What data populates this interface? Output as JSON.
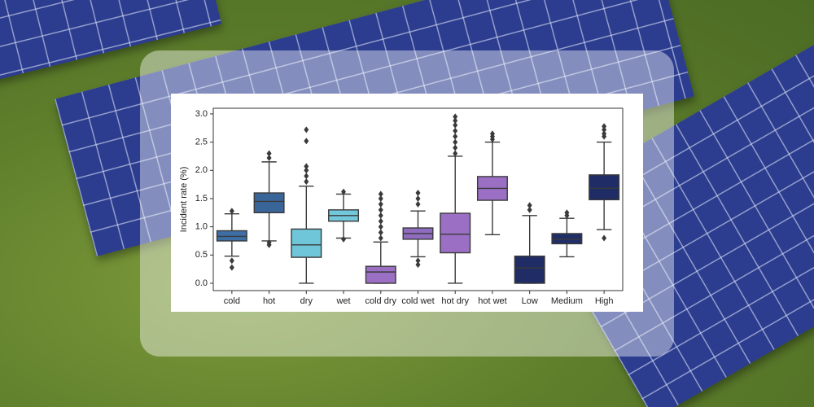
{
  "chart_data": {
    "type": "box",
    "y_label": "Incident rate (%)",
    "ylim": [
      -0.13,
      3.1
    ],
    "yticks": [
      {
        "value": 0,
        "label": "0.0"
      },
      0.5,
      {
        "value": 1,
        "label": "1.0"
      },
      1.5,
      {
        "value": 2,
        "label": "2.0"
      },
      2.5,
      {
        "value": 3,
        "label": "3.0"
      }
    ],
    "categories": [
      "cold",
      "hot",
      "dry",
      "wet",
      "cold dry",
      "cold wet",
      "hot dry",
      "hot wet",
      "Low",
      "Medium",
      "High"
    ],
    "boxes": [
      {
        "low": 0.48,
        "q1": 0.75,
        "median": 0.83,
        "q3": 0.93,
        "high": 1.23,
        "outliers": [
          0.28,
          0.4,
          1.28
        ],
        "color": "#3d6fa6"
      },
      {
        "low": 0.75,
        "q1": 1.25,
        "median": 1.45,
        "q3": 1.6,
        "high": 2.15,
        "outliers": [
          0.68,
          0.72,
          2.22,
          2.3
        ],
        "color": "#3a6599"
      },
      {
        "low": 0,
        "q1": 0.46,
        "median": 0.68,
        "q3": 0.96,
        "high": 1.72,
        "outliers": [
          1.8,
          1.9,
          2.0,
          2.07,
          2.52,
          2.72
        ],
        "color": "#6ec6d8"
      },
      {
        "low": 0.8,
        "q1": 1.1,
        "median": 1.2,
        "q3": 1.3,
        "high": 1.58,
        "outliers": [
          0.78,
          1.62
        ],
        "color": "#72c7da"
      },
      {
        "low": 0,
        "q1": 0,
        "median": 0.2,
        "q3": 0.3,
        "high": 0.73,
        "outliers": [
          0.8,
          0.9,
          1.0,
          1.1,
          1.2,
          1.3,
          1.4,
          1.5,
          1.58
        ],
        "color": "#9a6fc4"
      },
      {
        "low": 0.47,
        "q1": 0.78,
        "median": 0.88,
        "q3": 0.98,
        "high": 1.28,
        "outliers": [
          0.33,
          0.4,
          1.4,
          1.5,
          1.6
        ],
        "color": "#8f6cbf"
      },
      {
        "low": 0,
        "q1": 0.54,
        "median": 0.87,
        "q3": 1.24,
        "high": 2.25,
        "outliers": [
          2.3,
          2.4,
          2.5,
          2.6,
          2.7,
          2.8,
          2.88,
          2.95
        ],
        "color": "#9a6fc4"
      },
      {
        "low": 0.86,
        "q1": 1.47,
        "median": 1.68,
        "q3": 1.89,
        "high": 2.5,
        "outliers": [
          2.55,
          2.6,
          2.65
        ],
        "color": "#9a6fc4"
      },
      {
        "low": 0,
        "q1": 0,
        "median": 0.27,
        "q3": 0.48,
        "high": 1.2,
        "outliers": [
          1.3,
          1.38
        ],
        "color": "#1f2c66"
      },
      {
        "low": 0.47,
        "q1": 0.7,
        "median": 0.78,
        "q3": 0.88,
        "high": 1.15,
        "outliers": [
          1.2,
          1.25
        ],
        "color": "#202e68"
      },
      {
        "low": 0.95,
        "q1": 1.48,
        "median": 1.68,
        "q3": 1.92,
        "high": 2.5,
        "outliers": [
          0.8,
          2.6,
          2.65,
          2.72,
          2.78
        ],
        "color": "#1f2c66"
      }
    ]
  }
}
